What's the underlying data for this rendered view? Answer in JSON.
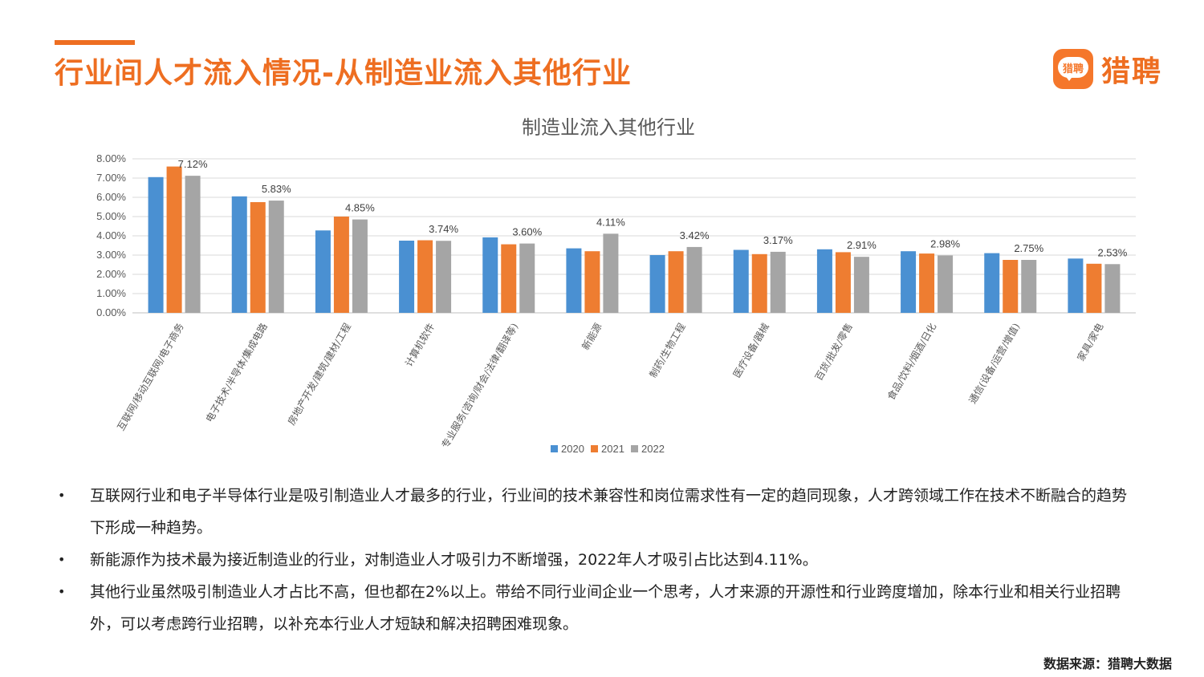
{
  "header": {
    "title": "行业间人才流入情况-从制造业流入其他行业",
    "logo_badge": "猎聘",
    "logo_text": "猎聘",
    "accent_color": "#EE6E21"
  },
  "chart_data": {
    "type": "bar",
    "title": "制造业流入其他行业",
    "categories": [
      "互联网/移动互联网/电子商务",
      "电子技术/半导体/集成电路",
      "房地产开发/建筑/建材/工程",
      "计算机软件",
      "专业服务(咨询/财会/法律/翻译等)",
      "新能源",
      "制药/生物工程",
      "医疗设备/器械",
      "百货/批发/零售",
      "食品/饮料/烟酒/日化",
      "通信(设备/运营/增值)",
      "家具/家电"
    ],
    "series": [
      {
        "name": "2020",
        "color": "#4A90D2",
        "values": [
          7.05,
          6.05,
          4.28,
          3.75,
          3.92,
          3.35,
          3.0,
          3.27,
          3.3,
          3.2,
          3.1,
          2.82
        ]
      },
      {
        "name": "2021",
        "color": "#EE7D31",
        "values": [
          7.6,
          5.75,
          5.0,
          3.77,
          3.56,
          3.2,
          3.2,
          3.05,
          3.15,
          3.08,
          2.75,
          2.55
        ]
      },
      {
        "name": "2022",
        "color": "#A5A5A5",
        "values": [
          7.12,
          5.83,
          4.85,
          3.74,
          3.6,
          4.11,
          3.42,
          3.17,
          2.91,
          2.98,
          2.75,
          2.53
        ]
      }
    ],
    "data_labels": [
      "7.12%",
      "5.83%",
      "4.85%",
      "3.74%",
      "3.60%",
      "4.11%",
      "3.42%",
      "3.17%",
      "2.91%",
      "2.98%",
      "2.75%",
      "2.53%"
    ],
    "yticks": [
      "0.00%",
      "1.00%",
      "2.00%",
      "3.00%",
      "4.00%",
      "5.00%",
      "6.00%",
      "7.00%",
      "8.00%"
    ],
    "ylim": [
      0,
      8
    ],
    "legend_position": "bottom",
    "grid": true
  },
  "bullets": [
    "互联网行业和电子半导体行业是吸引制造业人才最多的行业，行业间的技术兼容性和岗位需求性有一定的趋同现象，人才跨领域工作在技术不断融合的趋势下形成一种趋势。",
    "新能源作为技术最为接近制造业的行业，对制造业人才吸引力不断增强，2022年人才吸引占比达到4.11%。",
    "其他行业虽然吸引制造业人才占比不高，但也都在2%以上。带给不同行业间企业一个思考，人才来源的开源性和行业跨度增加，除本行业和相关行业招聘外，可以考虑跨行业招聘，以补充本行业人才短缺和解决招聘困难现象。"
  ],
  "bullet_symbol": "•",
  "source": "数据来源：猎聘大数据"
}
